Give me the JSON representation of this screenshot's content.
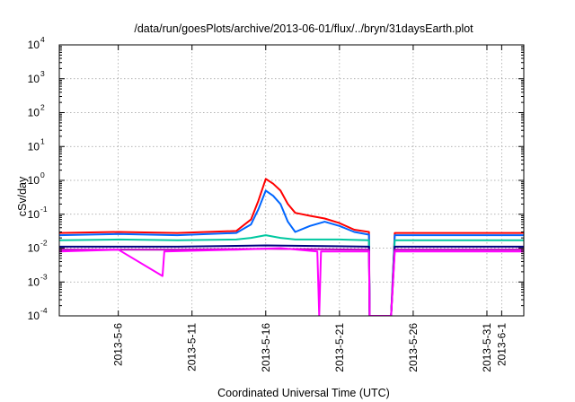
{
  "chart_data": {
    "type": "line",
    "title": "/data/run/goesPlots/archive/2013-06-01/flux/../bryn/31daysEarth.plot",
    "xlabel": "Coordinated Universal Time (UTC)",
    "ylabel": "cSv/day",
    "x_axis": "date",
    "xlim": [
      "2013-05-02",
      "2013-06-02T12:00"
    ],
    "x_ticks": [
      {
        "date": "2013-05-06",
        "label": "2013-5-6"
      },
      {
        "date": "2013-05-11",
        "label": "2013-5-11"
      },
      {
        "date": "2013-05-16",
        "label": "2013-5-16"
      },
      {
        "date": "2013-05-21",
        "label": "2013-5-21"
      },
      {
        "date": "2013-05-26",
        "label": "2013-5-26"
      },
      {
        "date": "2013-05-31",
        "label": "2013-5-31"
      },
      {
        "date": "2013-06-01",
        "label": "2013-6-1"
      }
    ],
    "y_scale": "log",
    "ylim": [
      0.0001,
      10000
    ],
    "y_ticks": [
      {
        "value": 0.0001,
        "base": "10",
        "exp": "-4"
      },
      {
        "value": 0.001,
        "base": "10",
        "exp": "-3"
      },
      {
        "value": 0.01,
        "base": "10",
        "exp": "-2"
      },
      {
        "value": 0.1,
        "base": "10",
        "exp": "-1"
      },
      {
        "value": 1,
        "base": "10",
        "exp": "0"
      },
      {
        "value": 10,
        "base": "10",
        "exp": "1"
      },
      {
        "value": 100,
        "base": "10",
        "exp": "2"
      },
      {
        "value": 1000,
        "base": "10",
        "exp": "3"
      },
      {
        "value": 10000,
        "base": "10",
        "exp": "4"
      }
    ],
    "grid": true,
    "legend": "none",
    "series": [
      {
        "color": "#ff0000",
        "points": [
          [
            "2013-05-02",
            0.028
          ],
          [
            "2013-05-06",
            0.03
          ],
          [
            "2013-05-10",
            0.028
          ],
          [
            "2013-05-14",
            0.032
          ],
          [
            "2013-05-15",
            0.07
          ],
          [
            "2013-05-15T12:00",
            0.25
          ],
          [
            "2013-05-16",
            1.1
          ],
          [
            "2013-05-16T12:00",
            0.8
          ],
          [
            "2013-05-17",
            0.5
          ],
          [
            "2013-05-17T12:00",
            0.2
          ],
          [
            "2013-05-18",
            0.11
          ],
          [
            "2013-05-19",
            0.09
          ],
          [
            "2013-05-20",
            0.075
          ],
          [
            "2013-05-21",
            0.055
          ],
          [
            "2013-05-22",
            0.035
          ],
          [
            "2013-05-23",
            0.03
          ],
          [
            "2013-05-23T01:00",
            0.0001
          ],
          [
            "2013-05-24T12:00",
            0.0001
          ],
          [
            "2013-05-24T18:00",
            0.028
          ],
          [
            "2013-06-02T12:00",
            0.028
          ]
        ]
      },
      {
        "color": "#0066ff",
        "points": [
          [
            "2013-05-02",
            0.024
          ],
          [
            "2013-05-06",
            0.026
          ],
          [
            "2013-05-10",
            0.024
          ],
          [
            "2013-05-14",
            0.028
          ],
          [
            "2013-05-15",
            0.05
          ],
          [
            "2013-05-15T12:00",
            0.14
          ],
          [
            "2013-05-16",
            0.5
          ],
          [
            "2013-05-16T12:00",
            0.35
          ],
          [
            "2013-05-17",
            0.2
          ],
          [
            "2013-05-17T12:00",
            0.06
          ],
          [
            "2013-05-18",
            0.03
          ],
          [
            "2013-05-19",
            0.045
          ],
          [
            "2013-05-20",
            0.06
          ],
          [
            "2013-05-21",
            0.045
          ],
          [
            "2013-05-22",
            0.03
          ],
          [
            "2013-05-23",
            0.025
          ],
          [
            "2013-05-23T01:00",
            0.0001
          ],
          [
            "2013-05-24T12:00",
            0.0001
          ],
          [
            "2013-05-24T18:00",
            0.024
          ],
          [
            "2013-06-02T12:00",
            0.024
          ]
        ]
      },
      {
        "color": "#00c8a0",
        "points": [
          [
            "2013-05-02",
            0.017
          ],
          [
            "2013-05-06",
            0.018
          ],
          [
            "2013-05-10",
            0.017
          ],
          [
            "2013-05-14",
            0.018
          ],
          [
            "2013-05-15",
            0.02
          ],
          [
            "2013-05-16",
            0.024
          ],
          [
            "2013-05-17",
            0.02
          ],
          [
            "2013-05-18",
            0.018
          ],
          [
            "2013-05-21",
            0.018
          ],
          [
            "2013-05-23",
            0.017
          ],
          [
            "2013-05-23T01:00",
            0.0001
          ],
          [
            "2013-05-24T12:00",
            0.0001
          ],
          [
            "2013-05-24T18:00",
            0.017
          ],
          [
            "2013-06-02T12:00",
            0.017
          ]
        ]
      },
      {
        "color": "#000080",
        "points": [
          [
            "2013-05-02",
            0.011
          ],
          [
            "2013-05-10",
            0.011
          ],
          [
            "2013-05-16",
            0.012
          ],
          [
            "2013-05-23",
            0.011
          ],
          [
            "2013-05-23T01:00",
            0.0001
          ],
          [
            "2013-05-24T12:00",
            0.0001
          ],
          [
            "2013-05-24T18:00",
            0.011
          ],
          [
            "2013-06-02T12:00",
            0.011
          ]
        ]
      },
      {
        "color": "#c000c0",
        "points": [
          [
            "2013-05-02",
            0.009
          ],
          [
            "2013-05-10",
            0.009
          ],
          [
            "2013-05-16",
            0.0095
          ],
          [
            "2013-05-23",
            0.009
          ],
          [
            "2013-05-23T01:00",
            0.0001
          ],
          [
            "2013-05-24T12:00",
            0.0001
          ],
          [
            "2013-05-24T18:00",
            0.009
          ],
          [
            "2013-06-02T12:00",
            0.009
          ]
        ]
      },
      {
        "color": "#ff00ff",
        "points": [
          [
            "2013-05-02",
            0.008
          ],
          [
            "2013-05-06",
            0.009
          ],
          [
            "2013-05-09",
            0.0015
          ],
          [
            "2013-05-09T03:00",
            0.008
          ],
          [
            "2013-05-14",
            0.009
          ],
          [
            "2013-05-17",
            0.01
          ],
          [
            "2013-05-19T12:00",
            0.008
          ],
          [
            "2013-05-19T15:00",
            0.0001
          ],
          [
            "2013-05-19T18:00",
            0.008
          ],
          [
            "2013-05-23",
            0.008
          ],
          [
            "2013-05-23T01:00",
            0.0001
          ],
          [
            "2013-05-24T12:00",
            0.0001
          ],
          [
            "2013-05-24T18:00",
            0.008
          ],
          [
            "2013-06-02T12:00",
            0.008
          ]
        ]
      }
    ]
  }
}
